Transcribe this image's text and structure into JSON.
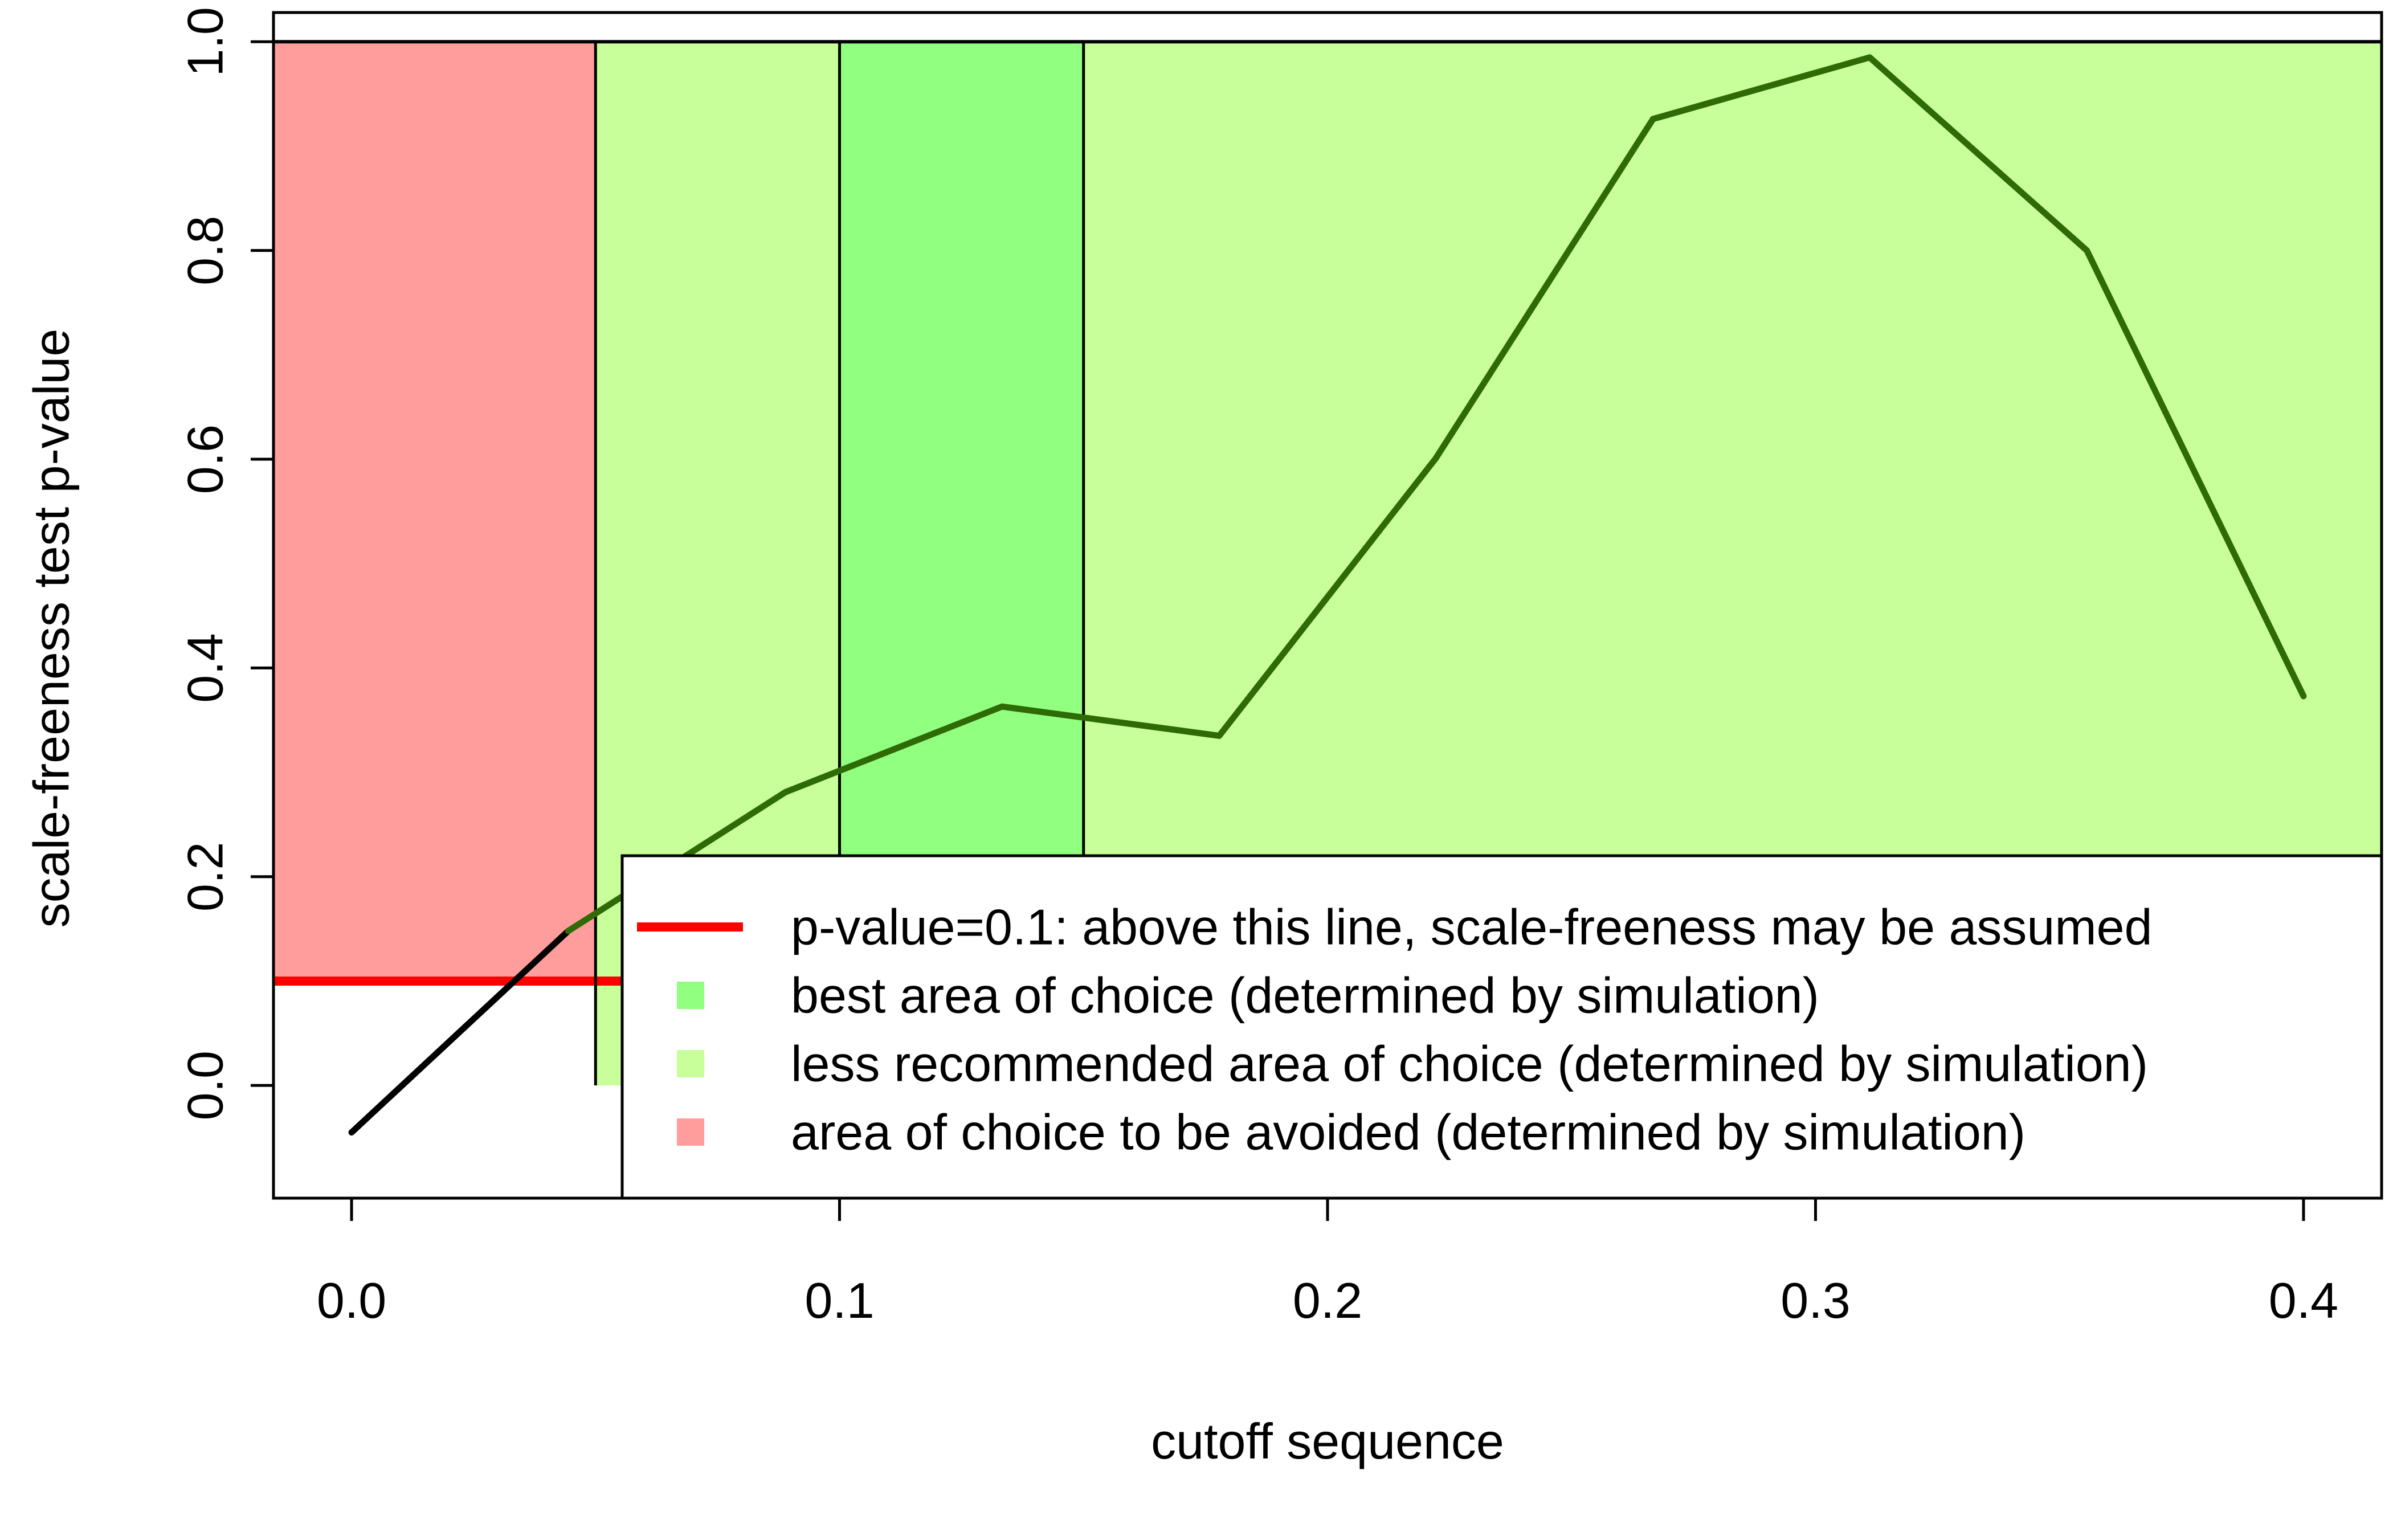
{
  "chart_data": {
    "type": "line",
    "title": "",
    "xlabel": "cutoff sequence",
    "ylabel": "scale-freeness test p-value",
    "xlim": [
      -0.016,
      0.416
    ],
    "ylim": [
      -0.108,
      1.028
    ],
    "x_ticks": [
      0.0,
      0.1,
      0.2,
      0.3,
      0.4
    ],
    "x_tick_labels": [
      "0.0",
      "0.1",
      "0.2",
      "0.3",
      "0.4"
    ],
    "y_ticks": [
      0.0,
      0.2,
      0.4,
      0.6,
      0.8,
      1.0
    ],
    "y_tick_labels": [
      "0.0",
      "0.2",
      "0.4",
      "0.6",
      "0.8",
      "1.0"
    ],
    "grid": false,
    "regions": [
      {
        "name": "area of choice to be avoided",
        "x": [
          -0.016,
          0.05
        ],
        "y": [
          0.1,
          1.0
        ],
        "color": "#ff9d9d"
      },
      {
        "name": "less recommended area of choice",
        "x": [
          0.05,
          0.1
        ],
        "y": [
          0.0,
          1.0
        ],
        "color": "#c9ff9b"
      },
      {
        "name": "best area of choice",
        "x": [
          0.1,
          0.15
        ],
        "y": [
          0.0,
          1.0
        ],
        "color": "#91ff80"
      },
      {
        "name": "less recommended area of choice",
        "x": [
          0.15,
          0.416
        ],
        "y": [
          0.0,
          1.0
        ],
        "color": "#c9ff9b"
      }
    ],
    "vertical_lines": [
      0.05,
      0.1,
      0.15
    ],
    "horizontal_lines": [
      {
        "y": 1.0,
        "color": "#000000"
      },
      {
        "y": 0.1,
        "color": "#ff0000"
      }
    ],
    "series": [
      {
        "color": "#2e6a06",
        "x": [
          0.0,
          0.0444,
          0.0889,
          0.1333,
          0.1778,
          0.2222,
          0.2667,
          0.3111,
          0.3556,
          0.4
        ],
        "y": [
          -0.045,
          0.148,
          0.281,
          0.363,
          0.335,
          0.601,
          0.926,
          0.985,
          0.8,
          0.373
        ]
      }
    ],
    "legend": {
      "position": "bottom-right",
      "entries": [
        {
          "label": "p-value=0.1:  above this line, scale-freeness may be assumed",
          "symbol": "line",
          "color": "#ff0000"
        },
        {
          "label": "best area of choice (determined by simulation)",
          "symbol": "square",
          "color": "#91ff80"
        },
        {
          "label": "less recommended area of choice (determined by simulation)",
          "symbol": "square",
          "color": "#c9ff9b"
        },
        {
          "label": "area of choice to be avoided (determined by simulation)",
          "symbol": "square",
          "color": "#ff9d9d"
        }
      ]
    }
  }
}
